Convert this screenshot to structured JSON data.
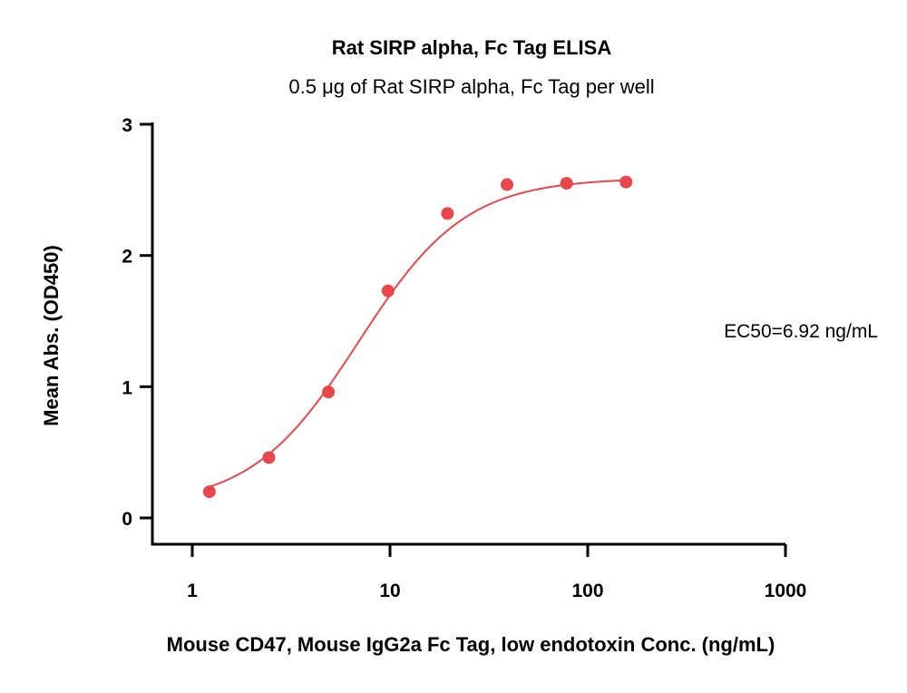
{
  "chart_data": {
    "type": "scatter",
    "title": "Rat SIRP alpha, Fc Tag ELISA",
    "subtitle": "0.5 μg of Rat SIRP alpha, Fc Tag per well",
    "xlabel": "Mouse CD47, Mouse IgG2a Fc Tag, low endotoxin Conc. (ng/mL)",
    "ylabel": "Mean Abs. (OD450)",
    "x_scale": "log",
    "xlim": [
      0.5,
      1000
    ],
    "ylim": [
      -0.2,
      3
    ],
    "x_ticks": [
      1,
      10,
      100,
      1000
    ],
    "x_tick_labels": [
      "1",
      "10",
      "100",
      "1000"
    ],
    "y_ticks": [
      0,
      1,
      2,
      3
    ],
    "y_tick_labels": [
      "0",
      "1",
      "2",
      "3"
    ],
    "grid": false,
    "series": [
      {
        "x": [
          1.22,
          2.44,
          4.88,
          9.77,
          19.53,
          39.06,
          78.13,
          156.25
        ],
        "y": [
          0.2,
          0.46,
          0.96,
          1.73,
          2.32,
          2.54,
          2.55,
          2.56
        ],
        "fit": "4PL",
        "color": "#e8474b"
      }
    ],
    "fit_params": {
      "bottom": 0.09,
      "top": 2.59,
      "ec50": 6.92,
      "hill": 1.6
    },
    "annotations": [
      {
        "text": "EC50=6.92 ng/mL",
        "position": "right"
      }
    ]
  }
}
